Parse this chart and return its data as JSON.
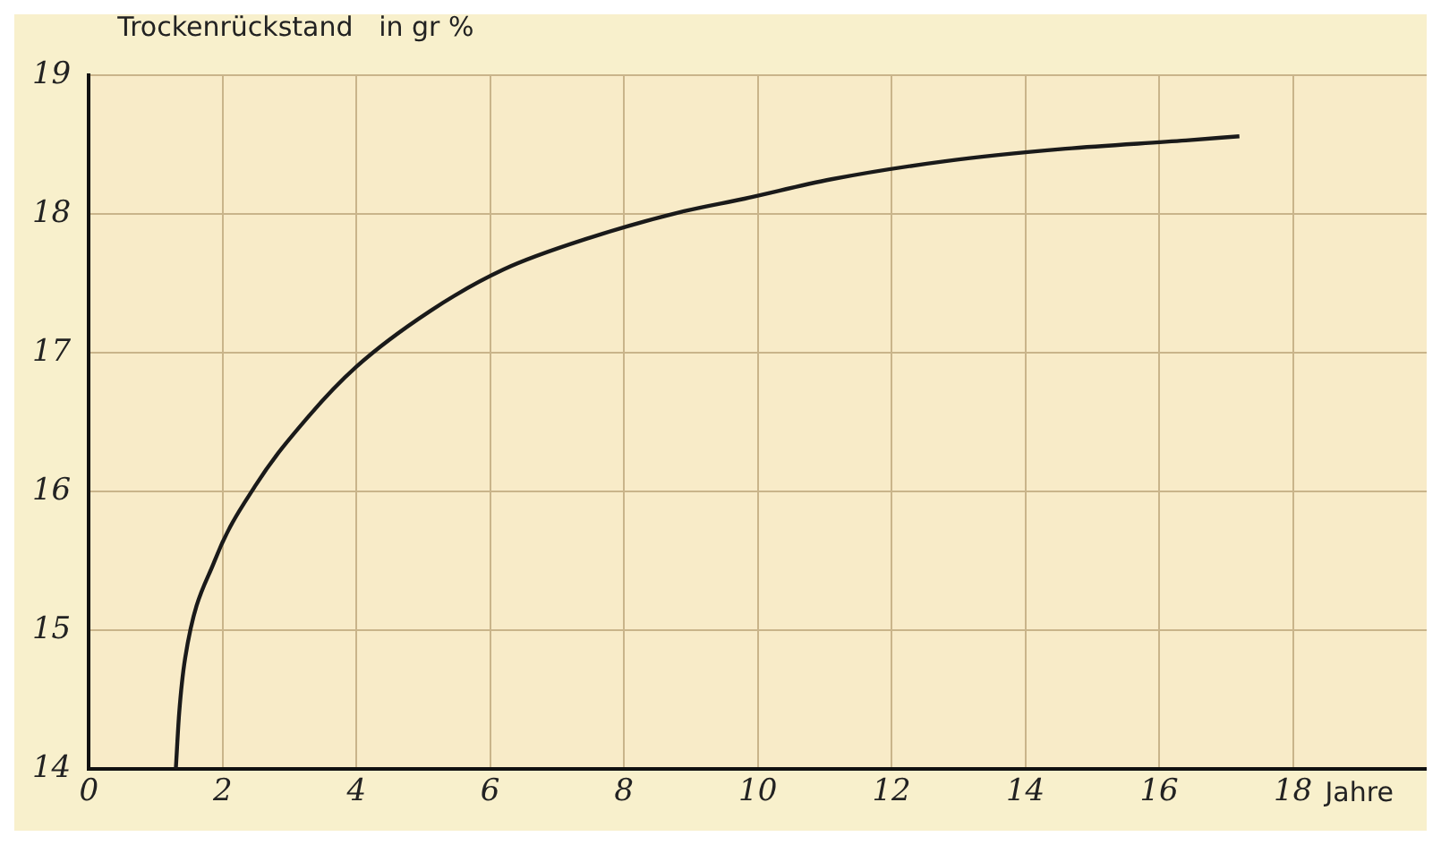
{
  "chart_data": {
    "type": "line",
    "ylabel": "Trockenrückstand   in gr %",
    "xlabel": "Jahre",
    "x": [
      1.3,
      1.35,
      1.44,
      1.88,
      2.5,
      3.3,
      4,
      5.1,
      6.2,
      7.5,
      8.9,
      9.8,
      11.1,
      12.8,
      14.6,
      16.4,
      17.2
    ],
    "series": [
      {
        "color": "#1a1a1a",
        "values": [
          14,
          14.4,
          14.8,
          15.5,
          16.05,
          16.55,
          16.9,
          17.3,
          17.6,
          17.83,
          18.02,
          18.11,
          18.25,
          18.38,
          18.47,
          18.53,
          18.56
        ]
      }
    ],
    "xlim": [
      0,
      20
    ],
    "xticks": [
      0,
      2,
      4,
      6,
      8,
      10,
      12,
      14,
      16,
      18
    ],
    "ylim": [
      14,
      19
    ],
    "yticks": [
      14,
      15,
      16,
      17,
      18,
      19
    ],
    "grid": true,
    "legend": false,
    "marker": "none",
    "line_style": "solid"
  }
}
